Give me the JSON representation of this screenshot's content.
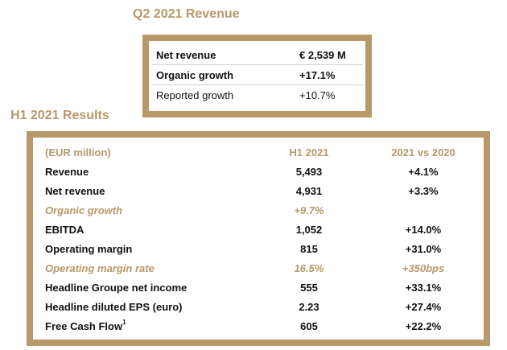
{
  "q2": {
    "title": "Q2 2021 Revenue",
    "rows": [
      {
        "label": "Net revenue",
        "value": "€ 2,539 M"
      },
      {
        "label": "Organic growth",
        "value": "+17.1%"
      },
      {
        "label": "Reported growth",
        "value": "+10.7%"
      }
    ]
  },
  "h1": {
    "title": "H1 2021 Results",
    "header": {
      "label": "(EUR million)",
      "col1": "H1 2021",
      "col2": "2021 vs 2020"
    },
    "rows": [
      {
        "label": "Revenue",
        "col1": "5,493",
        "col2": "+4.1%"
      },
      {
        "label": "Net revenue",
        "col1": "4,931",
        "col2": "+3.3%"
      },
      {
        "label": "Organic growth",
        "col1": "+9.7%",
        "col2": ""
      },
      {
        "label": "EBITDA",
        "col1": "1,052",
        "col2": "+14.0%"
      },
      {
        "label": "Operating margin",
        "col1": "815",
        "col2": "+31.0%"
      },
      {
        "label": "Operating margin rate",
        "col1": "16.5%",
        "col2": "+350bps"
      },
      {
        "label": "Headline Groupe net income",
        "col1": "555",
        "col2": "+33.1%"
      },
      {
        "label": "Headline diluted EPS (euro)",
        "col1": "2.23",
        "col2": "+27.4%"
      },
      {
        "label": "Free Cash Flow",
        "footnote": "1",
        "col1": "605",
        "col2": "+22.2%"
      }
    ]
  },
  "colors": {
    "accent": "#b8976a",
    "text": "#111111"
  }
}
